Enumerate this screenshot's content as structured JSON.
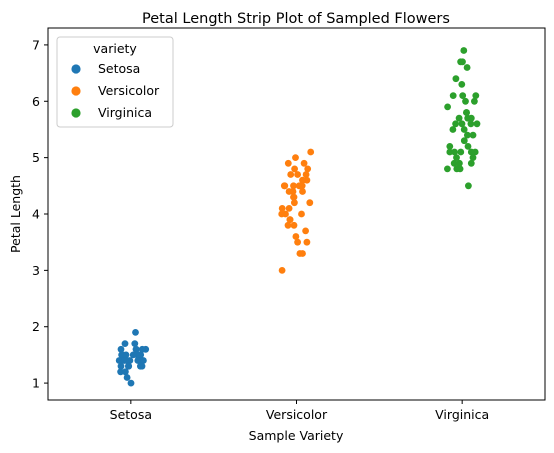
{
  "chart_data": {
    "type": "scatter",
    "subtype": "strip",
    "title": "Petal Length Strip Plot of Sampled Flowers",
    "xlabel": "Sample Variety",
    "ylabel": "Petal Length",
    "categories": [
      "Setosa",
      "Versicolor",
      "Virginica"
    ],
    "ylim": [
      0.7,
      7.3
    ],
    "yticks": [
      1,
      2,
      3,
      4,
      5,
      6,
      7
    ],
    "grid": false,
    "legend": {
      "title": "variety",
      "placement": "top-left"
    },
    "series": [
      {
        "name": "Setosa",
        "color": "#1f77b4",
        "values": [
          1.9,
          1.7,
          1.7,
          1.6,
          1.6,
          1.6,
          1.6,
          1.6,
          1.5,
          1.5,
          1.5,
          1.5,
          1.5,
          1.5,
          1.5,
          1.5,
          1.4,
          1.4,
          1.4,
          1.4,
          1.4,
          1.4,
          1.4,
          1.4,
          1.4,
          1.4,
          1.4,
          1.3,
          1.3,
          1.3,
          1.3,
          1.3,
          1.2,
          1.2,
          1.1,
          1.0
        ]
      },
      {
        "name": "Versicolor",
        "color": "#ff7f0e",
        "values": [
          5.1,
          5.0,
          4.9,
          4.9,
          4.8,
          4.8,
          4.7,
          4.7,
          4.7,
          4.6,
          4.6,
          4.5,
          4.5,
          4.5,
          4.5,
          4.5,
          4.4,
          4.4,
          4.4,
          4.3,
          4.3,
          4.2,
          4.2,
          4.1,
          4.1,
          4.0,
          4.0,
          4.0,
          3.9,
          3.9,
          3.8,
          3.8,
          3.7,
          3.6,
          3.5,
          3.5,
          3.3,
          3.3,
          3.0
        ]
      },
      {
        "name": "Virginica",
        "color": "#2ca02c",
        "values": [
          6.9,
          6.7,
          6.7,
          6.6,
          6.4,
          6.3,
          6.1,
          6.1,
          6.1,
          6.0,
          6.0,
          5.9,
          5.8,
          5.8,
          5.7,
          5.7,
          5.7,
          5.6,
          5.6,
          5.6,
          5.6,
          5.5,
          5.5,
          5.4,
          5.4,
          5.3,
          5.2,
          5.2,
          5.1,
          5.1,
          5.1,
          5.1,
          5.1,
          5.0,
          5.0,
          4.9,
          4.9,
          4.9,
          4.8,
          4.8,
          4.8,
          4.5
        ]
      }
    ]
  }
}
